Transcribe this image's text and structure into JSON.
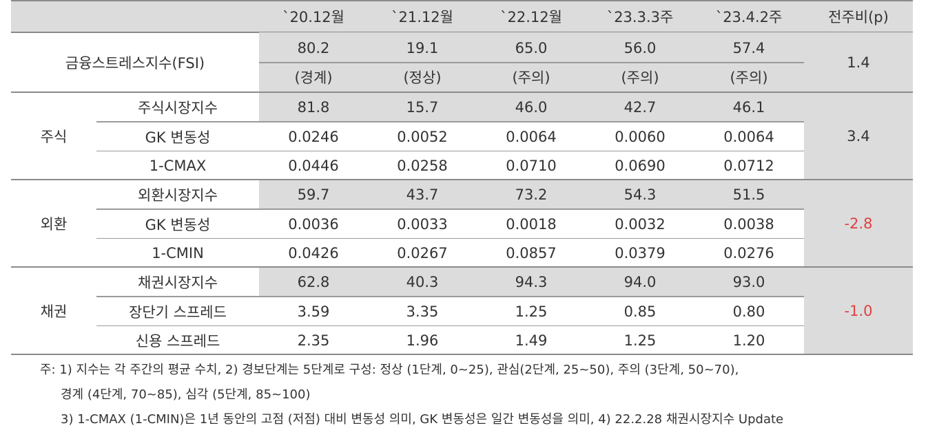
{
  "columns": [
    "`20.12월",
    "`21.12월",
    "`22.12월",
    "`23.3.3주",
    "`23.4.2주",
    "전주비(p)"
  ],
  "fsi": {
    "label": "금융스트레스지수(FSI)",
    "values": [
      "80.2",
      "19.1",
      "65.0",
      "56.0",
      "57.4"
    ],
    "levels": [
      "(경계)",
      "(정상)",
      "(주의)",
      "(주의)",
      "(주의)"
    ],
    "change": "1.4"
  },
  "groups": [
    {
      "name": "주식",
      "change": "3.4",
      "change_color": "#333333",
      "rows": [
        {
          "label": "주식시장지수",
          "values": [
            "81.8",
            "15.7",
            "46.0",
            "42.7",
            "46.1"
          ]
        },
        {
          "label": "GK 변동성",
          "values": [
            "0.0246",
            "0.0052",
            "0.0064",
            "0.0060",
            "0.0064"
          ]
        },
        {
          "label": "1-CMAX",
          "values": [
            "0.0446",
            "0.0258",
            "0.0710",
            "0.0690",
            "0.0712"
          ]
        }
      ]
    },
    {
      "name": "외환",
      "change": "-2.8",
      "change_color": "#e04040",
      "rows": [
        {
          "label": "외환시장지수",
          "values": [
            "59.7",
            "43.7",
            "73.2",
            "54.3",
            "51.5"
          ]
        },
        {
          "label": "GK 변동성",
          "values": [
            "0.0036",
            "0.0033",
            "0.0018",
            "0.0032",
            "0.0038"
          ]
        },
        {
          "label": "1-CMIN",
          "values": [
            "0.0426",
            "0.0267",
            "0.0857",
            "0.0379",
            "0.0276"
          ]
        }
      ]
    },
    {
      "name": "채권",
      "change": "-1.0",
      "change_color": "#e04040",
      "rows": [
        {
          "label": "채권시장지수",
          "values": [
            "62.8",
            "40.3",
            "94.3",
            "94.0",
            "93.0"
          ]
        },
        {
          "label": "장단기 스프레드",
          "values": [
            "3.59",
            "3.35",
            "1.25",
            "0.85",
            "0.80"
          ]
        },
        {
          "label": "신용 스프레드",
          "values": [
            "2.35",
            "1.96",
            "1.49",
            "1.25",
            "1.20"
          ]
        }
      ]
    }
  ],
  "notes": {
    "line1": "주: 1) 지수는 각 주간의 평균 수치, 2) 경보단계는 5단계로 구성: 정상 (1단계, 0~25), 관심(2단계, 25~50), 주의 (3단계, 50~70),",
    "line2": "경계 (4단계, 70~85), 심각 (5단계, 85~100)",
    "line3": "3) 1-CMAX (1-CMIN)은 1년 동안의 고점 (저점) 대비 변동성 의미, GK 변동성은 일간 변동성을 의미, 4) 22.2.28 채권시장지수 Update"
  }
}
